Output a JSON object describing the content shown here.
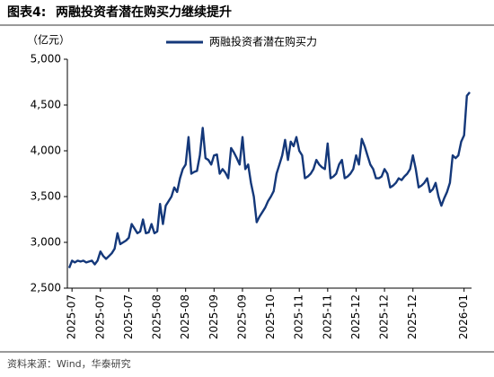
{
  "chart_data": {
    "type": "line",
    "label": "图表4:",
    "title": "两融投资者潜在购买力继续提升",
    "y_unit": "（亿元）",
    "source": "资料来源：Wind，华泰研究",
    "ylim": [
      2500,
      5000
    ],
    "yticks": [
      {
        "value": 2500,
        "label": "2,500"
      },
      {
        "value": 3000,
        "label": "3,000"
      },
      {
        "value": 3500,
        "label": "3,500"
      },
      {
        "value": 4000,
        "label": "4,000"
      },
      {
        "value": 4500,
        "label": "4,500"
      },
      {
        "value": 5000,
        "label": "5,000"
      }
    ],
    "categories": [
      null,
      "2025-07",
      null,
      null,
      null,
      null,
      null,
      null,
      null,
      null,
      null,
      "2025-07",
      null,
      null,
      null,
      null,
      null,
      null,
      null,
      null,
      null,
      "2025-07",
      null,
      null,
      null,
      null,
      null,
      null,
      null,
      null,
      null,
      "2025-08",
      null,
      null,
      null,
      null,
      null,
      null,
      null,
      null,
      null,
      "2025-08",
      null,
      null,
      null,
      null,
      null,
      null,
      null,
      null,
      null,
      "2025-09",
      null,
      null,
      null,
      null,
      null,
      null,
      null,
      null,
      null,
      "2025-09",
      null,
      null,
      null,
      null,
      null,
      null,
      null,
      null,
      null,
      "2025-10",
      null,
      null,
      null,
      null,
      null,
      null,
      null,
      null,
      null,
      "2025-11",
      null,
      null,
      null,
      null,
      null,
      null,
      null,
      null,
      null,
      "2025-11",
      null,
      null,
      null,
      null,
      null,
      null,
      null,
      null,
      null,
      "2025-12",
      null,
      null,
      null,
      null,
      null,
      null,
      null,
      null,
      null,
      "2025-12",
      null,
      null,
      null,
      null,
      null,
      null,
      null,
      null,
      null,
      "2025-12",
      null,
      null,
      null,
      null,
      null,
      null,
      null,
      null,
      null,
      null,
      null,
      null,
      null,
      null,
      null,
      null,
      null,
      "2026-01",
      null,
      null
    ],
    "series": [
      {
        "name": "两融投资者潜在购买力",
        "color": "#14387a",
        "values": [
          2720,
          2800,
          2780,
          2800,
          2790,
          2800,
          2780,
          2790,
          2800,
          2760,
          2800,
          2900,
          2850,
          2820,
          2850,
          2880,
          2930,
          3100,
          2980,
          3000,
          3020,
          3050,
          3200,
          3150,
          3100,
          3120,
          3250,
          3100,
          3110,
          3200,
          3100,
          3120,
          3420,
          3200,
          3400,
          3450,
          3500,
          3600,
          3550,
          3700,
          3800,
          3850,
          4150,
          3750,
          3770,
          3780,
          3950,
          4250,
          3920,
          3900,
          3850,
          3950,
          3960,
          3750,
          3800,
          3760,
          3700,
          4030,
          3980,
          3920,
          3850,
          4150,
          3800,
          3850,
          3650,
          3500,
          3220,
          3280,
          3330,
          3380,
          3450,
          3500,
          3560,
          3750,
          3850,
          3950,
          4120,
          3900,
          4100,
          4050,
          4150,
          4000,
          3950,
          3700,
          3720,
          3750,
          3800,
          3900,
          3850,
          3820,
          3800,
          4080,
          3700,
          3720,
          3750,
          3850,
          3900,
          3700,
          3720,
          3750,
          3800,
          3950,
          3850,
          4130,
          4050,
          3950,
          3850,
          3800,
          3700,
          3700,
          3720,
          3800,
          3750,
          3600,
          3620,
          3650,
          3700,
          3680,
          3720,
          3750,
          3800,
          3950,
          3800,
          3600,
          3620,
          3650,
          3700,
          3550,
          3580,
          3650,
          3500,
          3400,
          3480,
          3550,
          3650,
          3950,
          3920,
          3950,
          4100,
          4170,
          4600,
          4640
        ]
      }
    ]
  }
}
